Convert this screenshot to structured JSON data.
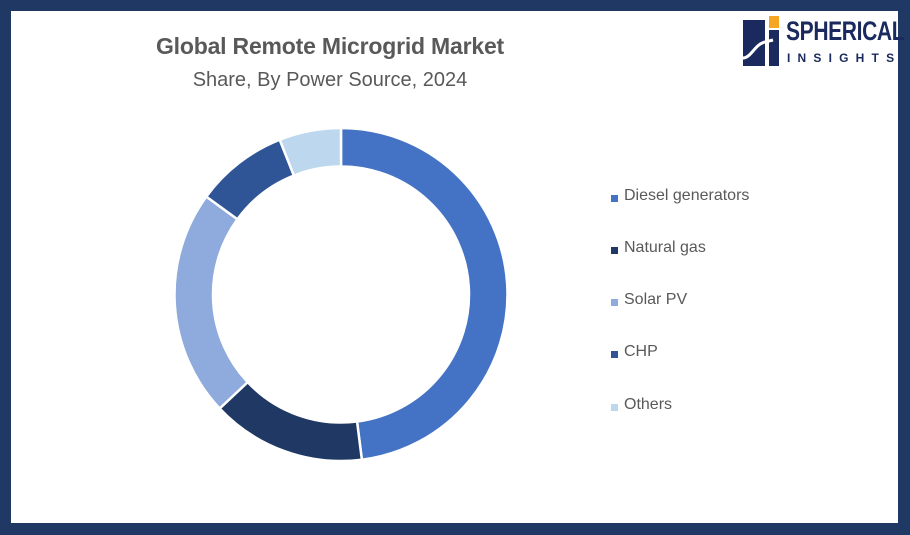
{
  "header": {
    "title": "Global Remote Microgrid Market",
    "subtitle": "Share, By Power Source, 2024"
  },
  "logo": {
    "name": "SPHERICAL",
    "sub": "INSIGHTS",
    "colors": {
      "navy": "#1a2a5e",
      "accent": "#f5a623"
    }
  },
  "frame": {
    "border_color": "#1f3864"
  },
  "chart_data": {
    "type": "pie",
    "variant": "donut",
    "title": "Global Remote Microgrid Market",
    "subtitle": "Share, By Power Source, 2024",
    "categories": [
      "Diesel generators",
      "Natural gas",
      "Solar PV",
      "CHP",
      "Others"
    ],
    "values": [
      48,
      15,
      22,
      9,
      6
    ],
    "unit": "%",
    "colors": [
      "#4472c4",
      "#203864",
      "#8faadc",
      "#2f5597",
      "#bdd7ee"
    ],
    "start_angle": 0,
    "direction": "clockwise",
    "legend_position": "right",
    "data_labels": false
  },
  "legend": {
    "items": [
      {
        "label": "Diesel generators",
        "color": "#4472c4"
      },
      {
        "label": "Natural gas",
        "color": "#203864"
      },
      {
        "label": "Solar PV",
        "color": "#8faadc"
      },
      {
        "label": "CHP",
        "color": "#2f5597"
      },
      {
        "label": "Others",
        "color": "#bdd7ee"
      }
    ]
  }
}
